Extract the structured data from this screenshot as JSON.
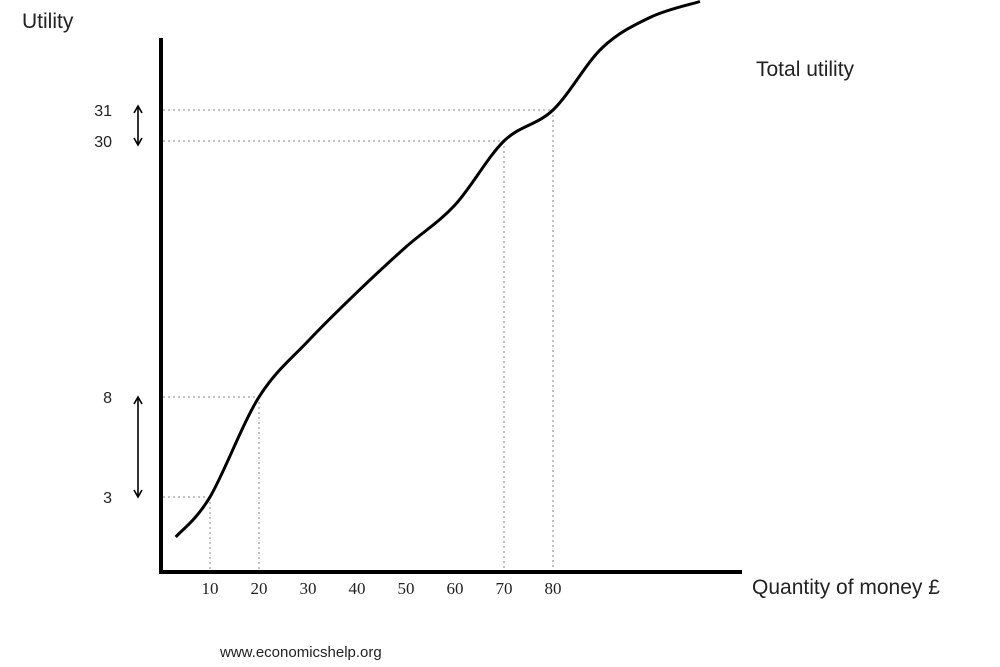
{
  "chart_data": {
    "type": "line",
    "title": "",
    "xlabel": "Quantity  of money £",
    "ylabel": "Utility",
    "series": [
      {
        "name": "Total utility",
        "x": [
          3,
          10,
          20,
          30,
          40,
          50,
          60,
          70,
          80,
          90,
          100,
          110
        ],
        "y": [
          1,
          3,
          8,
          12.8,
          17,
          20.9,
          24.5,
          30,
          31,
          33,
          34,
          34.5
        ]
      }
    ],
    "x_ticks": [
      "10",
      "20",
      "30",
      "40",
      "50",
      "60",
      "70",
      "80"
    ],
    "x_tick_values": [
      10,
      20,
      30,
      40,
      50,
      60,
      70,
      80
    ],
    "y_ticks": [
      "3",
      "8",
      "30",
      "31"
    ],
    "y_tick_values": [
      3,
      8,
      30,
      31
    ],
    "guides": [
      {
        "x": 10,
        "y": 3
      },
      {
        "x": 20,
        "y": 8
      },
      {
        "x": 70,
        "y": 30
      },
      {
        "x": 80,
        "y": 31
      }
    ],
    "arrows": [
      {
        "from": 3,
        "to": 8
      },
      {
        "from": 30,
        "to": 31
      }
    ],
    "grid": false,
    "legend": "none",
    "source": "www.economicshelp.org"
  }
}
